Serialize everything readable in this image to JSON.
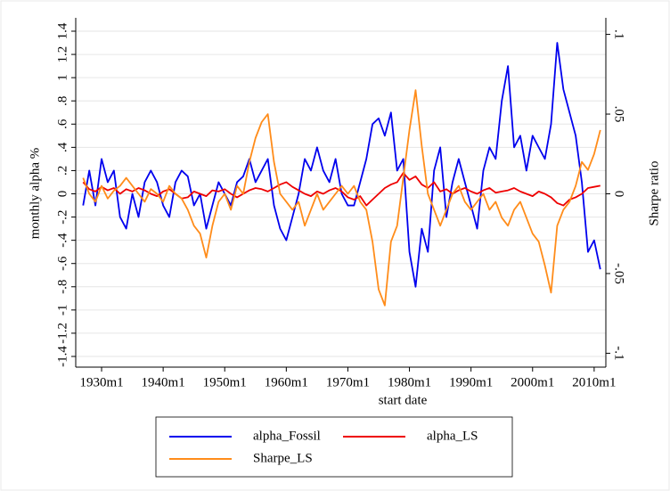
{
  "chart_data": {
    "type": "line",
    "x_label": "start date",
    "y_label": "monthly alpha %",
    "y2_label": "Sharpe ratio",
    "x": [
      1927,
      1928,
      1929,
      1930,
      1931,
      1932,
      1933,
      1934,
      1935,
      1936,
      1937,
      1938,
      1939,
      1940,
      1941,
      1942,
      1943,
      1944,
      1945,
      1946,
      1947,
      1948,
      1949,
      1950,
      1951,
      1952,
      1953,
      1954,
      1955,
      1956,
      1957,
      1958,
      1959,
      1960,
      1961,
      1962,
      1963,
      1964,
      1965,
      1966,
      1967,
      1968,
      1969,
      1970,
      1971,
      1972,
      1973,
      1974,
      1975,
      1976,
      1977,
      1978,
      1979,
      1980,
      1981,
      1982,
      1983,
      1984,
      1985,
      1986,
      1987,
      1988,
      1989,
      1990,
      1991,
      1992,
      1993,
      1994,
      1995,
      1996,
      1997,
      1998,
      1999,
      2000,
      2001,
      2002,
      2003,
      2004,
      2005,
      2006,
      2007,
      2008,
      2009,
      2010,
      2011
    ],
    "series": [
      {
        "name": "alpha_Fossil",
        "color": "#0000ee",
        "values": [
          -0.1,
          0.2,
          -0.1,
          0.3,
          0.1,
          0.2,
          -0.2,
          -0.3,
          0.0,
          -0.2,
          0.1,
          0.2,
          0.1,
          -0.1,
          -0.2,
          0.1,
          0.2,
          0.15,
          -0.1,
          0.0,
          -0.3,
          -0.1,
          0.1,
          0.0,
          -0.1,
          0.1,
          0.15,
          0.3,
          0.1,
          0.2,
          0.3,
          -0.1,
          -0.3,
          -0.4,
          -0.2,
          0.0,
          0.3,
          0.2,
          0.4,
          0.2,
          0.1,
          0.3,
          0.0,
          -0.1,
          -0.1,
          0.1,
          0.3,
          0.6,
          0.65,
          0.5,
          0.7,
          0.2,
          0.3,
          -0.5,
          -0.8,
          -0.3,
          -0.5,
          0.2,
          0.4,
          -0.2,
          0.1,
          0.3,
          0.1,
          -0.1,
          -0.3,
          0.2,
          0.4,
          0.3,
          0.8,
          1.1,
          0.4,
          0.5,
          0.2,
          0.5,
          0.4,
          0.3,
          0.6,
          1.3,
          0.9,
          0.7,
          0.5,
          0.1,
          -0.5,
          -0.4,
          -0.65
        ]
      },
      {
        "name": "alpha_LS",
        "color": "#ee0000",
        "values": [
          0.1,
          0.04,
          0.02,
          0.06,
          0.03,
          0.05,
          0.0,
          0.04,
          0.02,
          0.05,
          0.03,
          0.0,
          -0.02,
          0.02,
          0.04,
          0.0,
          -0.04,
          -0.03,
          0.02,
          0.0,
          -0.02,
          0.03,
          0.02,
          0.04,
          0.0,
          -0.03,
          0.0,
          0.03,
          0.05,
          0.04,
          0.02,
          0.05,
          0.08,
          0.1,
          0.06,
          0.03,
          0.0,
          -0.02,
          0.02,
          0.0,
          0.03,
          0.05,
          0.02,
          -0.03,
          -0.05,
          -0.02,
          -0.1,
          -0.05,
          0.0,
          0.05,
          0.08,
          0.1,
          0.18,
          0.12,
          0.15,
          0.08,
          0.05,
          0.1,
          0.02,
          0.04,
          0.0,
          0.03,
          0.05,
          0.02,
          0.0,
          0.03,
          0.05,
          0.01,
          0.02,
          0.03,
          0.05,
          0.02,
          0.0,
          -0.02,
          0.02,
          0.0,
          -0.03,
          -0.08,
          -0.1,
          -0.05,
          -0.03,
          0.0,
          0.05,
          0.06,
          0.07
        ]
      },
      {
        "name": "Sharpe_LS",
        "color": "#ff8c1a",
        "axis": "y2",
        "values": [
          0.01,
          0.0,
          -0.005,
          0.005,
          -0.003,
          0.002,
          0.005,
          0.01,
          0.005,
          0.0,
          -0.005,
          0.003,
          0.0,
          -0.005,
          0.005,
          0.0,
          -0.003,
          -0.01,
          -0.02,
          -0.025,
          -0.04,
          -0.02,
          -0.005,
          0.0,
          -0.01,
          0.005,
          0.0,
          0.02,
          0.035,
          0.045,
          0.05,
          0.02,
          0.0,
          -0.005,
          -0.01,
          -0.005,
          -0.02,
          -0.01,
          0.0,
          -0.01,
          -0.005,
          0.0,
          0.005,
          0.0,
          0.005,
          -0.005,
          -0.01,
          -0.03,
          -0.06,
          -0.07,
          -0.03,
          -0.02,
          0.01,
          0.04,
          0.065,
          0.03,
          0.0,
          -0.01,
          -0.02,
          -0.01,
          0.0,
          0.005,
          -0.005,
          -0.01,
          -0.005,
          0.0,
          -0.01,
          -0.005,
          -0.015,
          -0.02,
          -0.01,
          -0.005,
          -0.015,
          -0.025,
          -0.03,
          -0.045,
          -0.062,
          -0.02,
          -0.01,
          -0.005,
          0.005,
          0.02,
          0.015,
          0.025,
          0.04
        ]
      }
    ],
    "xlim": [
      1925.8,
      2011.9
    ],
    "xticks": [
      {
        "value": 1930,
        "label": "1930m1"
      },
      {
        "value": 1940,
        "label": "1940m1"
      },
      {
        "value": 1950,
        "label": "1950m1"
      },
      {
        "value": 1960,
        "label": "1960m1"
      },
      {
        "value": 1970,
        "label": "1970m1"
      },
      {
        "value": 1980,
        "label": "1980m1"
      },
      {
        "value": 1990,
        "label": "1990m1"
      },
      {
        "value": 2000,
        "label": "2000m1"
      },
      {
        "value": 2010,
        "label": "2010m1"
      }
    ],
    "ylim": [
      -1.4,
      1.4
    ],
    "yticks": [
      -1.4,
      -1.2,
      -1,
      {
        "value": -0.8,
        "label": "-.8"
      },
      {
        "value": -0.6,
        "label": "-.6"
      },
      {
        "value": -0.4,
        "label": "-.4"
      },
      {
        "value": -0.2,
        "label": "-.2"
      },
      0,
      {
        "value": 0.2,
        "label": ".2"
      },
      {
        "value": 0.4,
        "label": ".4"
      },
      {
        "value": 0.6,
        "label": ".6"
      },
      {
        "value": 0.8,
        "label": ".8"
      },
      1,
      1.2,
      1.4
    ],
    "y2lim": [
      -0.102,
      0.102
    ],
    "y2ticks": [
      {
        "value": -0.1,
        "label": "-.1"
      },
      {
        "value": -0.05,
        "label": "-.05"
      },
      0,
      {
        "value": 0.05,
        "label": ".05"
      },
      {
        "value": 0.1,
        "label": ".1"
      }
    ],
    "grid": true
  }
}
